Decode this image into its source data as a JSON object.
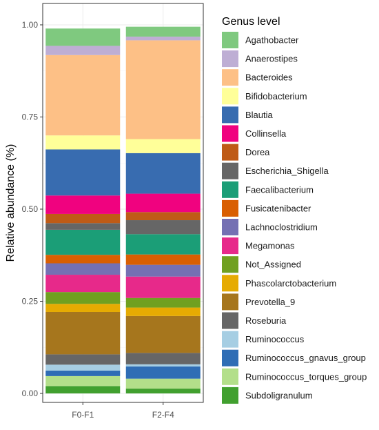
{
  "chart_data": {
    "type": "stacked-bar",
    "categories": [
      "F0-F1",
      "F2-F4"
    ],
    "ylabel": "Relative abundance (%)",
    "ylim": [
      0,
      1.03
    ],
    "yticks": [
      "0.00",
      "0.25",
      "0.50",
      "0.75",
      "1.00"
    ],
    "ytick_values": [
      0,
      0.25,
      0.5,
      0.75,
      1.0
    ],
    "grid": true,
    "legend_title": "Genus level",
    "legend_position": "right",
    "series": [
      {
        "name": "Subdoligranulum",
        "color": "#41A02F",
        "values": [
          0.02,
          0.013
        ]
      },
      {
        "name": "Ruminococcus_torques_group",
        "color": "#B3DF8A",
        "values": [
          0.027,
          0.027
        ]
      },
      {
        "name": "Ruminococcus_gnavus_group",
        "color": "#2F6DB5",
        "values": [
          0.015,
          0.033
        ]
      },
      {
        "name": "Ruminococcus",
        "color": "#A6CEE3",
        "values": [
          0.016,
          0.006
        ]
      },
      {
        "name": "Roseburia",
        "color": "#666666",
        "values": [
          0.028,
          0.031
        ]
      },
      {
        "name": "Prevotella_9",
        "color": "#A6761D",
        "values": [
          0.115,
          0.1
        ]
      },
      {
        "name": "Phascolarctobacterium",
        "color": "#E6AB02",
        "values": [
          0.022,
          0.023
        ]
      },
      {
        "name": "Not_Assigned",
        "color": "#70A020",
        "values": [
          0.032,
          0.026
        ]
      },
      {
        "name": "Megamonas",
        "color": "#E7298A",
        "values": [
          0.047,
          0.058
        ]
      },
      {
        "name": "Lachnoclostridium",
        "color": "#7570B3",
        "values": [
          0.031,
          0.032
        ]
      },
      {
        "name": "Fusicatenibacter",
        "color": "#D95F02",
        "values": [
          0.023,
          0.028
        ]
      },
      {
        "name": "Faecalibacterium",
        "color": "#1B9E77",
        "values": [
          0.068,
          0.055
        ]
      },
      {
        "name": "Escherichia_Shigella",
        "color": "#666666",
        "values": [
          0.018,
          0.038
        ]
      },
      {
        "name": "Dorea",
        "color": "#BF5B17",
        "values": [
          0.025,
          0.022
        ]
      },
      {
        "name": "Collinsella",
        "color": "#F0027F",
        "values": [
          0.05,
          0.05
        ]
      },
      {
        "name": "Blautia",
        "color": "#386CB0",
        "values": [
          0.125,
          0.11
        ]
      },
      {
        "name": "Bifidobacterium",
        "color": "#FFFF99",
        "values": [
          0.038,
          0.038
        ]
      },
      {
        "name": "Bacteroides",
        "color": "#FDC086",
        "values": [
          0.218,
          0.268
        ]
      },
      {
        "name": "Anaerostipes",
        "color": "#BEAED4",
        "values": [
          0.025,
          0.01
        ]
      },
      {
        "name": "Agathobacter",
        "color": "#7FC97F",
        "values": [
          0.047,
          0.027
        ]
      }
    ],
    "legend_order": [
      "Agathobacter",
      "Anaerostipes",
      "Bacteroides",
      "Bifidobacterium",
      "Blautia",
      "Collinsella",
      "Dorea",
      "Escherichia_Shigella",
      "Faecalibacterium",
      "Fusicatenibacter",
      "Lachnoclostridium",
      "Megamonas",
      "Not_Assigned",
      "Phascolarctobacterium",
      "Prevotella_9",
      "Roseburia",
      "Ruminococcus",
      "Ruminococcus_gnavus_group",
      "Ruminococcus_torques_group",
      "Subdoligranulum"
    ]
  }
}
